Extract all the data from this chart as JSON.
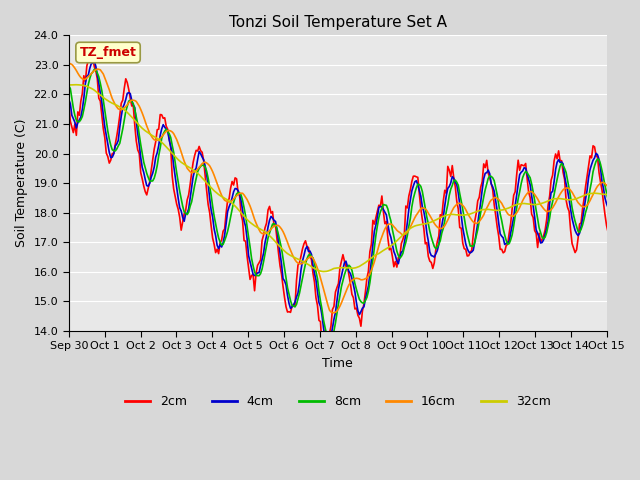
{
  "title": "Tonzi Soil Temperature Set A",
  "xlabel": "Time",
  "ylabel": "Soil Temperature (C)",
  "ylim": [
    14.0,
    24.0
  ],
  "yticks": [
    14.0,
    15.0,
    16.0,
    17.0,
    18.0,
    19.0,
    20.0,
    21.0,
    22.0,
    23.0,
    24.0
  ],
  "xtick_positions": [
    0,
    1,
    2,
    3,
    4,
    5,
    6,
    7,
    8,
    9,
    10,
    11,
    12,
    13,
    14,
    15
  ],
  "xtick_labels": [
    "Sep 30",
    "Oct 1",
    "Oct 2",
    "Oct 3",
    "Oct 4",
    "Oct 5",
    "Oct 6",
    "Oct 7",
    "Oct 8",
    "Oct 9",
    "Oct 10",
    "Oct 11",
    "Oct 12",
    "Oct 13",
    "Oct 14",
    "Oct 15"
  ],
  "annotation_text": "TZ_fmet",
  "annotation_color": "#cc0000",
  "annotation_bg": "#ffffcc",
  "annotation_border": "#999944",
  "legend_items": [
    "2cm",
    "4cm",
    "8cm",
    "16cm",
    "32cm"
  ],
  "line_colors": [
    "#ff0000",
    "#0000cc",
    "#00bb00",
    "#ff8800",
    "#cccc00"
  ],
  "line_widths": [
    1.2,
    1.2,
    1.2,
    1.2,
    1.2
  ]
}
